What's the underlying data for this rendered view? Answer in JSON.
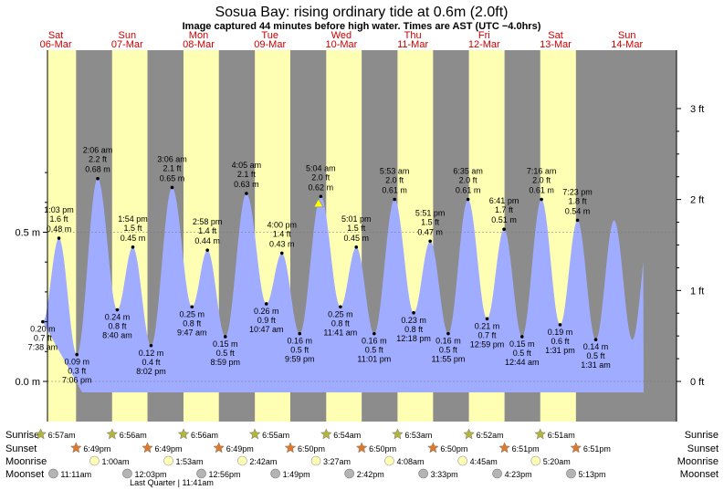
{
  "header": {
    "title": "Sosua Bay: rising  ordinary tide at 0.6m (2.0ft)",
    "subtitle": "Image captured 44 minutes before high water. Times are AST (UTC −4.0hrs)"
  },
  "days": [
    {
      "name": "Sat",
      "date": "06-Mar"
    },
    {
      "name": "Sun",
      "date": "07-Mar"
    },
    {
      "name": "Mon",
      "date": "08-Mar"
    },
    {
      "name": "Tue",
      "date": "09-Mar"
    },
    {
      "name": "Wed",
      "date": "10-Mar"
    },
    {
      "name": "Thu",
      "date": "11-Mar"
    },
    {
      "name": "Fri",
      "date": "12-Mar"
    },
    {
      "name": "Sat",
      "date": "13-Mar"
    },
    {
      "name": "Sun",
      "date": "14-Mar"
    }
  ],
  "chart_data": {
    "type": "area",
    "title": "Sosua Bay: rising  ordinary tide at 0.6m (2.0ft)",
    "y_left_ticks": [
      "0.0 m",
      "0.5 m"
    ],
    "y_right_ticks": [
      "0 ft",
      "1 ft",
      "2 ft",
      "3 ft"
    ],
    "ylim_m": [
      -0.05,
      0.78
    ],
    "series": [
      {
        "points": [
          {
            "day": 0,
            "hours": 7.63,
            "m": 0.2,
            "time": "7:38 am",
            "ft": "0.7 ft",
            "mtxt": "0.20 m",
            "kind": "low"
          },
          {
            "day": 0,
            "hours": 13.05,
            "m": 0.48,
            "time": "1:03 pm",
            "ft": "1.6 ft",
            "mtxt": "0.48 m",
            "kind": "high"
          },
          {
            "day": 0,
            "hours": 19.1,
            "m": 0.09,
            "time": "7:06 pm",
            "ft": "0.3 ft",
            "mtxt": "0.09 m",
            "kind": "low"
          },
          {
            "day": 1,
            "hours": 2.1,
            "m": 0.68,
            "time": "2:06 am",
            "ft": "2.2 ft",
            "mtxt": "0.68 m",
            "kind": "high"
          },
          {
            "day": 1,
            "hours": 8.67,
            "m": 0.24,
            "time": "8:40 am",
            "ft": "0.8 ft",
            "mtxt": "0.24 m",
            "kind": "low"
          },
          {
            "day": 1,
            "hours": 13.9,
            "m": 0.45,
            "time": "1:54 pm",
            "ft": "1.5 ft",
            "mtxt": "0.45 m",
            "kind": "high"
          },
          {
            "day": 1,
            "hours": 20.03,
            "m": 0.12,
            "time": "8:02 pm",
            "ft": "0.4 ft",
            "mtxt": "0.12 m",
            "kind": "low"
          },
          {
            "day": 2,
            "hours": 3.1,
            "m": 0.65,
            "time": "3:06 am",
            "ft": "2.1 ft",
            "mtxt": "0.65 m",
            "kind": "high"
          },
          {
            "day": 2,
            "hours": 9.78,
            "m": 0.25,
            "time": "9:47 am",
            "ft": "0.8 ft",
            "mtxt": "0.25 m",
            "kind": "low"
          },
          {
            "day": 2,
            "hours": 14.97,
            "m": 0.44,
            "time": "2:58 pm",
            "ft": "1.4 ft",
            "mtxt": "0.44 m",
            "kind": "high"
          },
          {
            "day": 2,
            "hours": 20.98,
            "m": 0.15,
            "time": "8:59 pm",
            "ft": "0.5 ft",
            "mtxt": "0.15 m",
            "kind": "low"
          },
          {
            "day": 3,
            "hours": 4.08,
            "m": 0.63,
            "time": "4:05 am",
            "ft": "2.1 ft",
            "mtxt": "0.63 m",
            "kind": "high"
          },
          {
            "day": 3,
            "hours": 10.78,
            "m": 0.26,
            "time": "10:47 am",
            "ft": "0.9 ft",
            "mtxt": "0.26 m",
            "kind": "low"
          },
          {
            "day": 3,
            "hours": 16.0,
            "m": 0.43,
            "time": "4:00 pm",
            "ft": "1.4 ft",
            "mtxt": "0.43 m",
            "kind": "high"
          },
          {
            "day": 3,
            "hours": 21.98,
            "m": 0.16,
            "time": "9:59 pm",
            "ft": "0.5 ft",
            "mtxt": "0.16 m",
            "kind": "low"
          },
          {
            "day": 4,
            "hours": 5.07,
            "m": 0.62,
            "time": "5:04 am",
            "ft": "2.0 ft",
            "mtxt": "0.62 m",
            "kind": "high"
          },
          {
            "day": 4,
            "hours": 11.68,
            "m": 0.25,
            "time": "11:41 am",
            "ft": "0.8 ft",
            "mtxt": "0.25 m",
            "kind": "low"
          },
          {
            "day": 4,
            "hours": 17.02,
            "m": 0.45,
            "time": "5:01 pm",
            "ft": "1.5 ft",
            "mtxt": "0.45 m",
            "kind": "high"
          },
          {
            "day": 4,
            "hours": 23.02,
            "m": 0.16,
            "time": "11:01 pm",
            "ft": "0.5 ft",
            "mtxt": "0.16 m",
            "kind": "low"
          },
          {
            "day": 5,
            "hours": 5.88,
            "m": 0.61,
            "time": "5:53 am",
            "ft": "2.0 ft",
            "mtxt": "0.61 m",
            "kind": "high"
          },
          {
            "day": 5,
            "hours": 12.3,
            "m": 0.23,
            "time": "12:18 pm",
            "ft": "0.8 ft",
            "mtxt": "0.23 m",
            "kind": "low"
          },
          {
            "day": 5,
            "hours": 17.85,
            "m": 0.47,
            "time": "5:51 pm",
            "ft": "1.5 ft",
            "mtxt": "0.47 m",
            "kind": "high"
          },
          {
            "day": 5,
            "hours": 23.92,
            "m": 0.16,
            "time": "11:55 pm",
            "ft": "0.5 ft",
            "mtxt": "0.16 m",
            "kind": "low"
          },
          {
            "day": 6,
            "hours": 6.58,
            "m": 0.61,
            "time": "6:35 am",
            "ft": "2.0 ft",
            "mtxt": "0.61 m",
            "kind": "high"
          },
          {
            "day": 6,
            "hours": 12.98,
            "m": 0.21,
            "time": "12:59 pm",
            "ft": "0.7 ft",
            "mtxt": "0.21 m",
            "kind": "low"
          },
          {
            "day": 6,
            "hours": 18.68,
            "m": 0.51,
            "time": "6:41 pm",
            "ft": "1.7 ft",
            "mtxt": "0.51 m",
            "kind": "high"
          },
          {
            "day": 7,
            "hours": 0.73,
            "m": 0.15,
            "time": "12:44 am",
            "ft": "0.5 ft",
            "mtxt": "0.15 m",
            "kind": "low"
          },
          {
            "day": 7,
            "hours": 7.27,
            "m": 0.61,
            "time": "7:16 am",
            "ft": "2.0 ft",
            "mtxt": "0.61 m",
            "kind": "high"
          },
          {
            "day": 7,
            "hours": 13.52,
            "m": 0.19,
            "time": "1:31 pm",
            "ft": "0.6 ft",
            "mtxt": "0.19 m",
            "kind": "low"
          },
          {
            "day": 7,
            "hours": 19.38,
            "m": 0.54,
            "time": "7:23 pm",
            "ft": "1.8 ft",
            "mtxt": "0.54 m",
            "kind": "high"
          },
          {
            "day": 8,
            "hours": 1.52,
            "m": 0.14,
            "time": "1:31 am",
            "ft": "0.5 ft",
            "mtxt": "0.14 m",
            "kind": "low"
          }
        ]
      }
    ],
    "current": {
      "day": 4,
      "hours": 4.33,
      "m": 0.6
    }
  },
  "rows": {
    "labels": {
      "sunrise": "Sunrise",
      "sunset": "Sunset",
      "moonrise": "Moonrise",
      "moonset": "Moonset"
    },
    "sunrise": [
      {
        "day": 0,
        "hours": 6.95,
        "text": "6:57am"
      },
      {
        "day": 1,
        "hours": 6.93,
        "text": "6:56am"
      },
      {
        "day": 2,
        "hours": 6.93,
        "text": "6:56am"
      },
      {
        "day": 3,
        "hours": 6.92,
        "text": "6:55am"
      },
      {
        "day": 4,
        "hours": 6.9,
        "text": "6:54am"
      },
      {
        "day": 5,
        "hours": 6.88,
        "text": "6:53am"
      },
      {
        "day": 6,
        "hours": 6.87,
        "text": "6:52am"
      },
      {
        "day": 7,
        "hours": 6.85,
        "text": "6:51am"
      }
    ],
    "sunset": [
      {
        "day": 0,
        "hours": 18.82,
        "text": "6:49pm"
      },
      {
        "day": 1,
        "hours": 18.82,
        "text": "6:49pm"
      },
      {
        "day": 2,
        "hours": 18.82,
        "text": "6:49pm"
      },
      {
        "day": 3,
        "hours": 18.83,
        "text": "6:50pm"
      },
      {
        "day": 4,
        "hours": 18.83,
        "text": "6:50pm"
      },
      {
        "day": 5,
        "hours": 18.83,
        "text": "6:50pm"
      },
      {
        "day": 6,
        "hours": 18.85,
        "text": "6:51pm"
      },
      {
        "day": 7,
        "hours": 18.85,
        "text": "6:51pm"
      }
    ],
    "moonrise": [
      {
        "day": 1,
        "hours": 1.0,
        "text": "1:00am"
      },
      {
        "day": 2,
        "hours": 1.88,
        "text": "1:53am"
      },
      {
        "day": 3,
        "hours": 2.7,
        "text": "2:42am"
      },
      {
        "day": 4,
        "hours": 3.45,
        "text": "3:27am"
      },
      {
        "day": 5,
        "hours": 4.13,
        "text": "4:08am"
      },
      {
        "day": 6,
        "hours": 4.75,
        "text": "4:45am"
      },
      {
        "day": 7,
        "hours": 5.33,
        "text": "5:20am"
      }
    ],
    "moonset": [
      {
        "day": 0,
        "hours": 11.18,
        "text": "11:11am"
      },
      {
        "day": 1,
        "hours": 12.05,
        "text": "12:03pm"
      },
      {
        "day": 2,
        "hours": 12.93,
        "text": "12:56pm"
      },
      {
        "day": 3,
        "hours": 13.82,
        "text": "1:49pm"
      },
      {
        "day": 4,
        "hours": 14.7,
        "text": "2:42pm"
      },
      {
        "day": 5,
        "hours": 15.55,
        "text": "3:33pm"
      },
      {
        "day": 6,
        "hours": 16.38,
        "text": "4:23pm"
      },
      {
        "day": 7,
        "hours": 17.22,
        "text": "5:13pm"
      }
    ],
    "moon_phase": "Last Quarter | 11:41am"
  },
  "colors": {
    "night": "#8c8c8c",
    "day": "#ffffb4",
    "water": "#a0acff",
    "day_label": "#cc0000",
    "sunrise_star": "#b4b43c",
    "sunset_star": "#e07828",
    "moonrise": "#ffffb4",
    "moonset": "#b4b4b4",
    "marker": "#ffff00"
  }
}
